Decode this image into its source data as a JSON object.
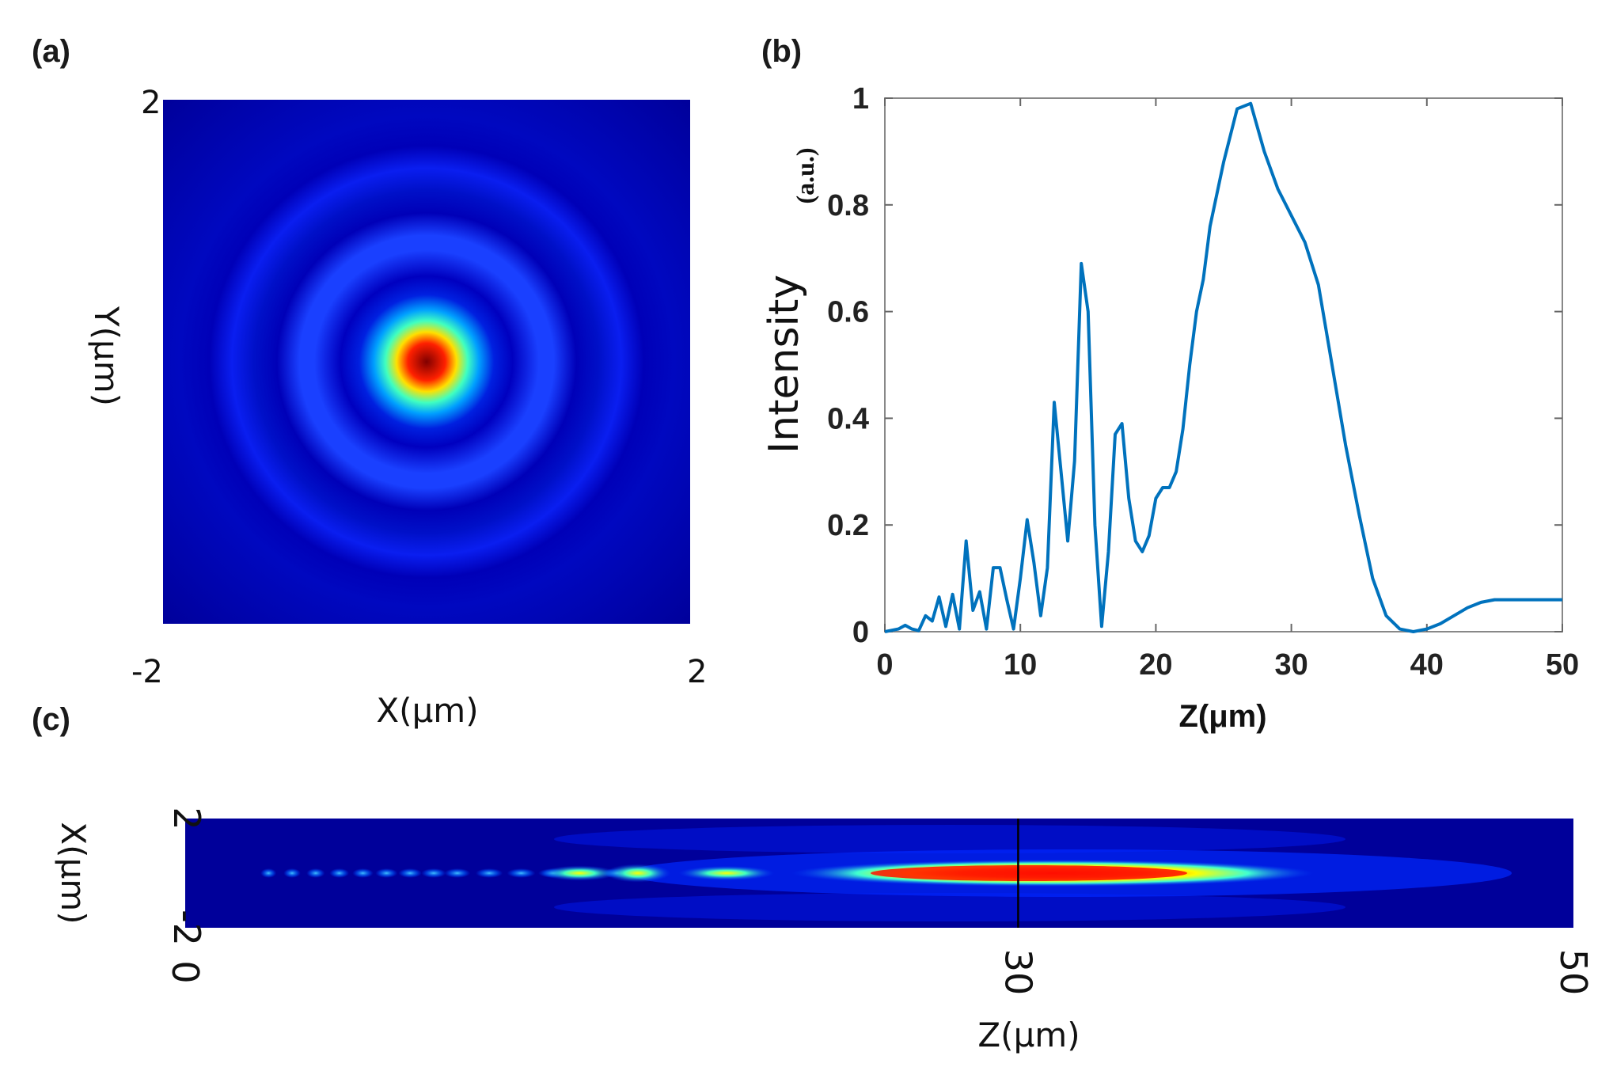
{
  "panels": {
    "a": "(a)",
    "b": "(b)",
    "c": "(c)"
  },
  "chart_data": [
    {
      "id": "a",
      "type": "heatmap",
      "title": "",
      "xlabel": "X(μm)",
      "ylabel": "Y(μm)",
      "xlim": [
        -2,
        2
      ],
      "ylim": [
        -2,
        2
      ],
      "x_ticks": [
        "-2",
        "2"
      ],
      "y_ticks": [
        "2"
      ],
      "colormap": "jet",
      "description_values": {
        "central_peak_intensity": 1.0,
        "rings": [
          {
            "radius_um": 0.95,
            "intensity": 0.3
          },
          {
            "radius_um": 1.55,
            "intensity": 0.22
          }
        ]
      },
      "colors": {
        "background": "#00008f",
        "low": "#0000ff",
        "mid": "#00ffff",
        "high": "#ffff00",
        "peak": "#800000"
      }
    },
    {
      "id": "b",
      "type": "line",
      "title": "",
      "xlabel": "Z(μm)",
      "ylabel_main": "Intensity",
      "ylabel_unit": "(a.u.)",
      "xlim": [
        0,
        50
      ],
      "ylim": [
        0,
        1
      ],
      "x_ticks": [
        "0",
        "10",
        "20",
        "30",
        "40",
        "50"
      ],
      "y_ticks": [
        "0",
        "0.2",
        "0.4",
        "0.6",
        "0.8",
        "1"
      ],
      "series": [
        {
          "name": "Intensity",
          "color": "#0072bd",
          "x": [
            0,
            1,
            1.5,
            2,
            2.5,
            3,
            3.5,
            4,
            4.5,
            5,
            5.5,
            6,
            6.5,
            7,
            7.5,
            8,
            8.5,
            9,
            9.5,
            10,
            10.5,
            11,
            11.5,
            12,
            12.5,
            13,
            13.5,
            14,
            14.5,
            15,
            15.5,
            16,
            16.5,
            17,
            17.5,
            18,
            18.5,
            19,
            19.5,
            20,
            20.5,
            21,
            21.5,
            22,
            22.5,
            23,
            23.5,
            24,
            25,
            26,
            27,
            28,
            29,
            30,
            31,
            32,
            33,
            34,
            35,
            36,
            37,
            38,
            39,
            40,
            41,
            42,
            43,
            44,
            45,
            46,
            47,
            48,
            49,
            50
          ],
          "y": [
            0,
            0.005,
            0.012,
            0.005,
            0.002,
            0.03,
            0.02,
            0.065,
            0.01,
            0.07,
            0.005,
            0.17,
            0.04,
            0.075,
            0.005,
            0.12,
            0.12,
            0.06,
            0.005,
            0.1,
            0.21,
            0.13,
            0.03,
            0.12,
            0.43,
            0.3,
            0.17,
            0.32,
            0.69,
            0.6,
            0.2,
            0.01,
            0.15,
            0.37,
            0.39,
            0.25,
            0.17,
            0.15,
            0.18,
            0.25,
            0.27,
            0.27,
            0.3,
            0.38,
            0.5,
            0.6,
            0.66,
            0.76,
            0.88,
            0.98,
            0.99,
            0.9,
            0.83,
            0.78,
            0.73,
            0.65,
            0.5,
            0.35,
            0.22,
            0.1,
            0.03,
            0.005,
            0,
            0.005,
            0.015,
            0.03,
            0.045,
            0.055,
            0.06,
            0.06,
            0.06,
            0.06,
            0.06,
            0.06
          ]
        }
      ]
    },
    {
      "id": "c",
      "type": "heatmap",
      "title": "",
      "xlabel": "Z(μm)",
      "ylabel": "X(μm)",
      "xlim": [
        0,
        50
      ],
      "ylim": [
        -2,
        2
      ],
      "x_ticks": [
        "0",
        "30",
        "50"
      ],
      "y_ticks": [
        "2",
        "-2"
      ],
      "marker_line_z": 30,
      "colormap": "jet",
      "hotspots": [
        {
          "z": 16.3,
          "intensity": 0.7,
          "length": 1.0
        },
        {
          "z": 14.2,
          "intensity": 0.45,
          "length": 1.2
        },
        {
          "z": 19.5,
          "intensity": 0.4,
          "length": 1.6
        },
        {
          "z": 31.0,
          "intensity": 1.0,
          "length": 13.0
        }
      ]
    }
  ]
}
